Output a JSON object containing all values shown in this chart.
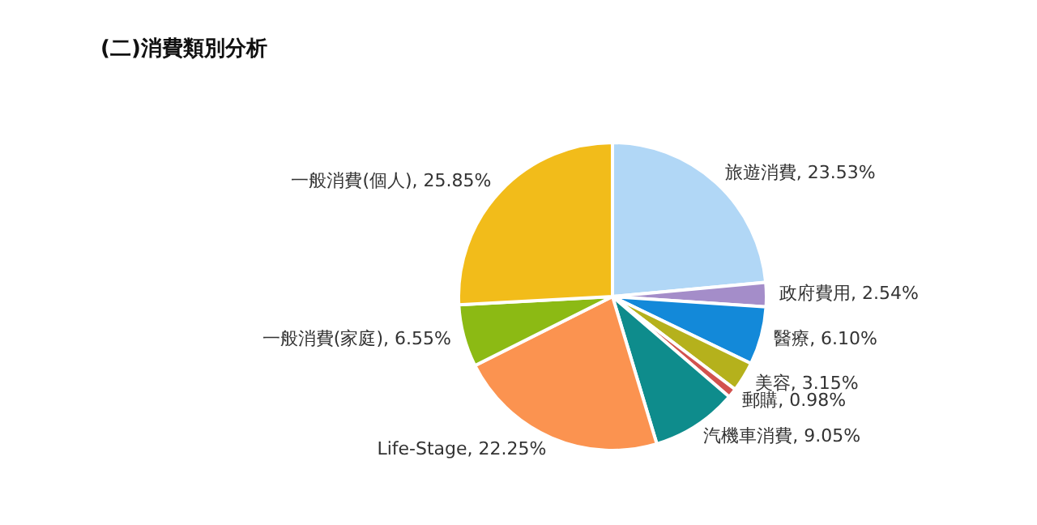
{
  "chart_data": {
    "type": "pie",
    "title": "(二)消費類別分析",
    "categories": [
      "旅遊消費",
      "政府費用",
      "醫療",
      "美容",
      "郵購",
      "汽機車消費",
      "Life-Stage",
      "一般消費(家庭)",
      "一般消費(個人)"
    ],
    "values": [
      23.53,
      2.54,
      6.1,
      3.15,
      0.98,
      9.05,
      22.25,
      6.55,
      25.85
    ],
    "value_labels": [
      "23.53%",
      "2.54%",
      "6.10%",
      "3.15%",
      "0.98%",
      "9.05%",
      "22.25%",
      "6.55%",
      "25.85%"
    ],
    "colors": [
      "#b1d7f6",
      "#a48dc9",
      "#1389d9",
      "#b5b11c",
      "#d2524e",
      "#0e8c8c",
      "#fb9350",
      "#8cba14",
      "#f2bc1a"
    ]
  }
}
